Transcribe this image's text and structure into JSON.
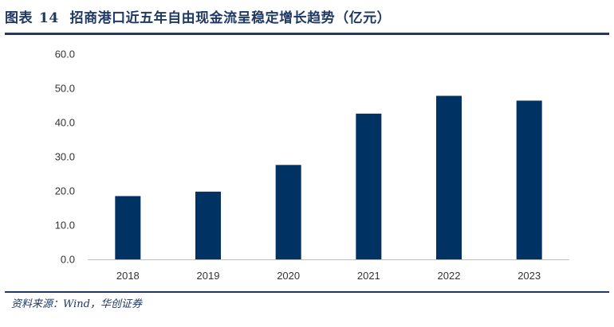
{
  "figure": {
    "label": "图表",
    "number": "14",
    "title": "招商港口近五年自由现金流呈稳定增长趋势（亿元）"
  },
  "source": "资料来源：Wind，华创证券",
  "colors": {
    "bar": "#003264",
    "title": "#1f3864",
    "axis": "#bfbfbf"
  },
  "chart_data": {
    "type": "bar",
    "title": "招商港口近五年自由现金流呈稳定增长趋势（亿元）",
    "xlabel": "",
    "ylabel": "",
    "categories": [
      "2018",
      "2019",
      "2020",
      "2021",
      "2022",
      "2023"
    ],
    "values": [
      18.5,
      19.8,
      27.6,
      42.6,
      47.8,
      46.4
    ],
    "ylim": [
      0,
      60
    ],
    "yticks": [
      "0.0",
      "10.0",
      "20.0",
      "30.0",
      "40.0",
      "50.0",
      "60.0"
    ],
    "grid": false,
    "legend": "none"
  }
}
